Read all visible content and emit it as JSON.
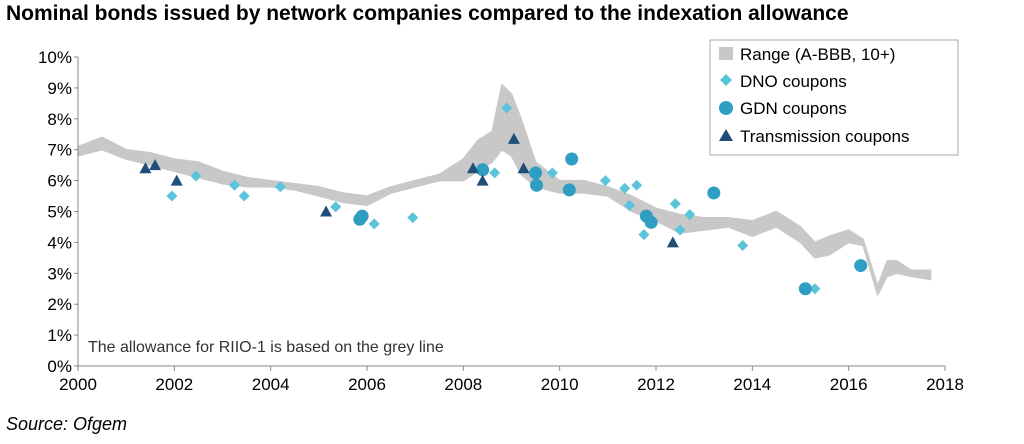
{
  "header": {
    "title": "Nominal bonds issued by network companies compared to the indexation allowance"
  },
  "footer": {
    "source": "Source: Ofgem"
  },
  "chart_data": {
    "type": "scatter",
    "title": "Nominal bonds issued by network companies compared to the indexation allowance",
    "xlim": [
      2000,
      2018
    ],
    "ylim": [
      0,
      10
    ],
    "x_ticks": [
      "2000",
      "2002",
      "2004",
      "2006",
      "2008",
      "2010",
      "2012",
      "2014",
      "2016",
      "2018"
    ],
    "y_ticks": [
      "0%",
      "1%",
      "2%",
      "3%",
      "4%",
      "5%",
      "6%",
      "7%",
      "8%",
      "9%",
      "10%"
    ],
    "grid": false,
    "legend_position": "top-right",
    "annotation": "The allowance for RIIO-1 is based on the grey line",
    "colors": {
      "range": "#c8c8c8",
      "dno": "#5bc3da",
      "gdn": "#2e9ec2",
      "transmission": "#1f4e79"
    },
    "series": [
      {
        "name": "Range (A-BBB, 10+)",
        "type": "area",
        "x": [
          2000.0,
          2000.5,
          2001.0,
          2001.5,
          2002.0,
          2002.5,
          2003.0,
          2003.5,
          2004.0,
          2004.5,
          2005.0,
          2005.5,
          2006.0,
          2006.5,
          2007.0,
          2007.5,
          2008.0,
          2008.3,
          2008.6,
          2008.8,
          2009.0,
          2009.2,
          2009.5,
          2010.0,
          2010.5,
          2011.0,
          2011.5,
          2012.0,
          2012.5,
          2013.0,
          2013.5,
          2014.0,
          2014.5,
          2015.0,
          2015.3,
          2015.6,
          2016.0,
          2016.3,
          2016.6,
          2016.8,
          2017.0,
          2017.3,
          2017.7
        ],
        "lower": [
          6.8,
          7.0,
          6.7,
          6.5,
          6.3,
          6.1,
          5.9,
          5.8,
          5.8,
          5.7,
          5.5,
          5.3,
          5.2,
          5.6,
          5.8,
          6.0,
          6.0,
          6.3,
          6.6,
          7.0,
          6.8,
          6.2,
          5.8,
          5.6,
          5.6,
          5.5,
          5.0,
          4.7,
          4.3,
          4.4,
          4.5,
          4.2,
          4.5,
          4.0,
          3.5,
          3.6,
          4.0,
          3.9,
          2.3,
          2.9,
          3.0,
          2.9,
          2.8
        ],
        "upper": [
          7.1,
          7.4,
          7.0,
          6.9,
          6.7,
          6.6,
          6.3,
          6.1,
          6.0,
          5.9,
          5.8,
          5.6,
          5.5,
          5.8,
          6.0,
          6.2,
          6.7,
          7.3,
          7.6,
          9.1,
          8.8,
          8.0,
          6.6,
          6.0,
          6.0,
          5.8,
          5.5,
          5.1,
          4.9,
          4.8,
          4.8,
          4.7,
          5.0,
          4.5,
          4.0,
          4.2,
          4.4,
          4.1,
          2.6,
          3.4,
          3.4,
          3.1,
          3.1
        ]
      },
      {
        "name": "DNO coupons",
        "type": "scatter",
        "marker": "diamond",
        "x": [
          2001.95,
          2002.45,
          2003.25,
          2003.45,
          2004.2,
          2005.35,
          2006.15,
          2006.95,
          2008.65,
          2008.9,
          2009.85,
          2010.95,
          2011.35,
          2011.45,
          2011.6,
          2011.75,
          2012.4,
          2012.5,
          2012.7,
          2013.8,
          2015.3
        ],
        "y": [
          5.5,
          6.15,
          5.85,
          5.5,
          5.8,
          5.15,
          4.6,
          4.8,
          6.25,
          8.35,
          6.25,
          6.0,
          5.75,
          5.2,
          5.85,
          4.25,
          5.25,
          4.4,
          4.9,
          3.9,
          2.5
        ]
      },
      {
        "name": "GDN coupons",
        "type": "scatter",
        "marker": "circle",
        "x": [
          2005.85,
          2005.9,
          2008.4,
          2009.5,
          2009.52,
          2010.2,
          2010.25,
          2011.8,
          2011.9,
          2013.2,
          2015.1,
          2016.25
        ],
        "y": [
          4.75,
          4.85,
          6.35,
          6.25,
          5.85,
          5.7,
          6.7,
          4.85,
          4.65,
          5.6,
          2.5,
          3.25
        ]
      },
      {
        "name": "Transmission coupons",
        "type": "scatter",
        "marker": "triangle",
        "x": [
          2001.4,
          2001.6,
          2002.05,
          2005.15,
          2008.2,
          2008.4,
          2009.05,
          2009.25,
          2012.35
        ],
        "y": [
          6.4,
          6.5,
          6.0,
          5.0,
          6.4,
          6.0,
          7.35,
          6.4,
          4.0
        ]
      }
    ]
  }
}
